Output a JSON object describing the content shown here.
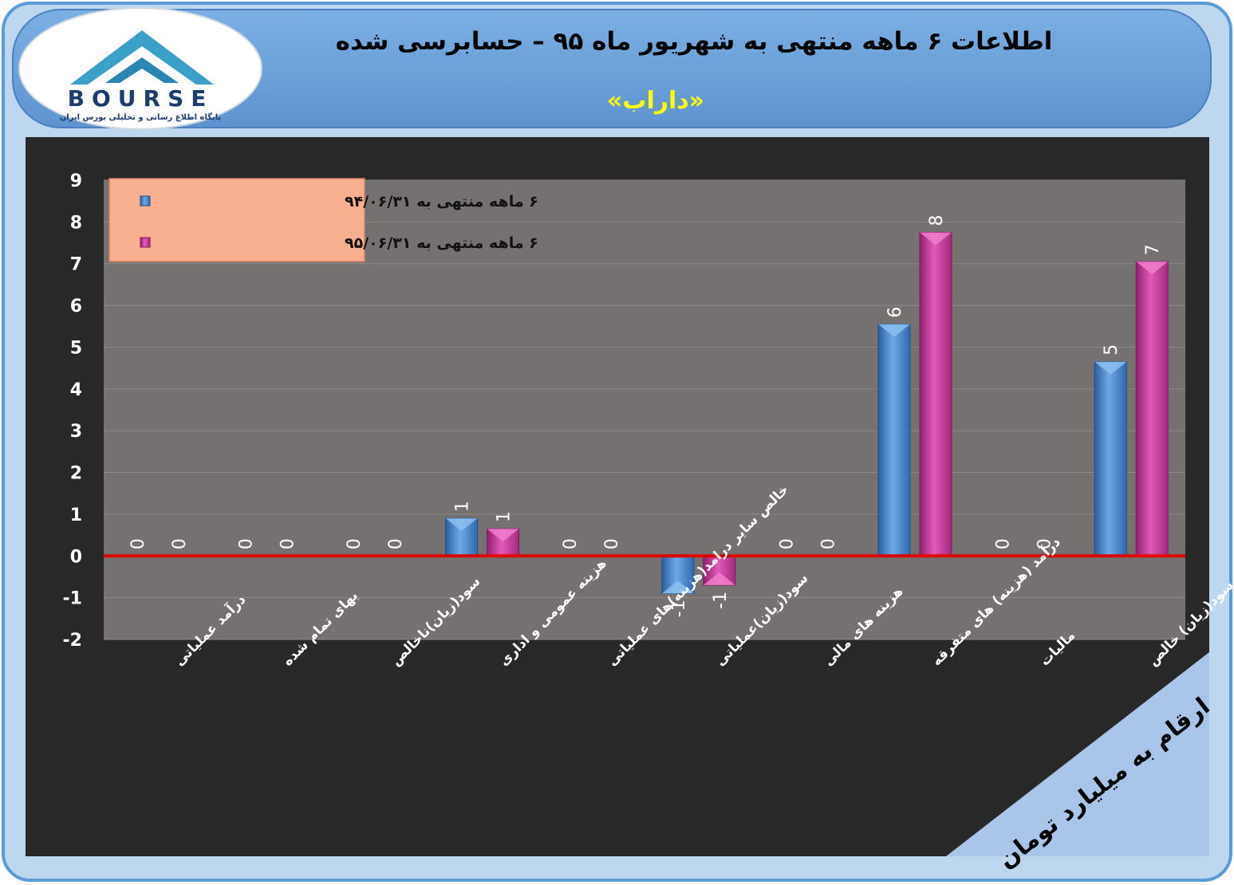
{
  "header": {
    "title": "اطلاعات ۶ ماهه منتهی به شهریور ماه ۹۵ – حسابرسی شده",
    "symbol": "«داراب»"
  },
  "logo": {
    "brand": "BOURSE",
    "tagline": "پایگاه اطلاع رسانی و تحلیلی بورس ایران"
  },
  "units_note": "ارقام به میلیارد تومان",
  "colors": {
    "frame_outer": "#5b9bd5",
    "frame_inner": "#bdd7ee",
    "header_bg": "#6a9fd8",
    "chart_bg": "#282828",
    "plot_bg": "#767171",
    "series1": "#4a86c8",
    "series2": "#c63a9a",
    "zero_line": "#e00000",
    "legend_bg": "#f8b090",
    "title_yellow": "#ffff00"
  },
  "chart_data": {
    "type": "bar",
    "categories": [
      "درآمد عملیاتی",
      "بهای تمام شده",
      "سود(زیان)ناخالص",
      "هزینه عمومی و اداری",
      "خالص سایر درامد(هزینه)های عملیاتی",
      "سود(زیان)عملیاتی",
      "هزینه های مالی",
      "درآمد (هزینه) های متفرقه",
      "مالیات",
      "سود(زیان) خالص"
    ],
    "series": [
      {
        "name": "۶ ماهه منتهی به ۹۴/۰۶/۳۱",
        "values": [
          0,
          0,
          0,
          0.9,
          0,
          -0.9,
          0,
          5.55,
          0,
          4.65
        ],
        "labels": [
          "0",
          "0",
          "0",
          "1",
          "0",
          "-1",
          "0",
          "6",
          "0",
          "5"
        ]
      },
      {
        "name": "۶ ماهه منتهی به ۹۵/۰۶/۳۱",
        "values": [
          0,
          0,
          0,
          0.65,
          0,
          -0.7,
          0,
          7.75,
          0,
          7.05
        ],
        "labels": [
          "0",
          "0",
          "0",
          "1",
          "0",
          "-1",
          "0",
          "8",
          "0",
          "7"
        ]
      }
    ],
    "ylim": [
      -2,
      9
    ],
    "yticks": [
      "9",
      "8",
      "7",
      "6",
      "5",
      "4",
      "3",
      "2",
      "1",
      "0",
      "-1",
      "-2"
    ],
    "grid": true,
    "legend_position": "top-left"
  }
}
